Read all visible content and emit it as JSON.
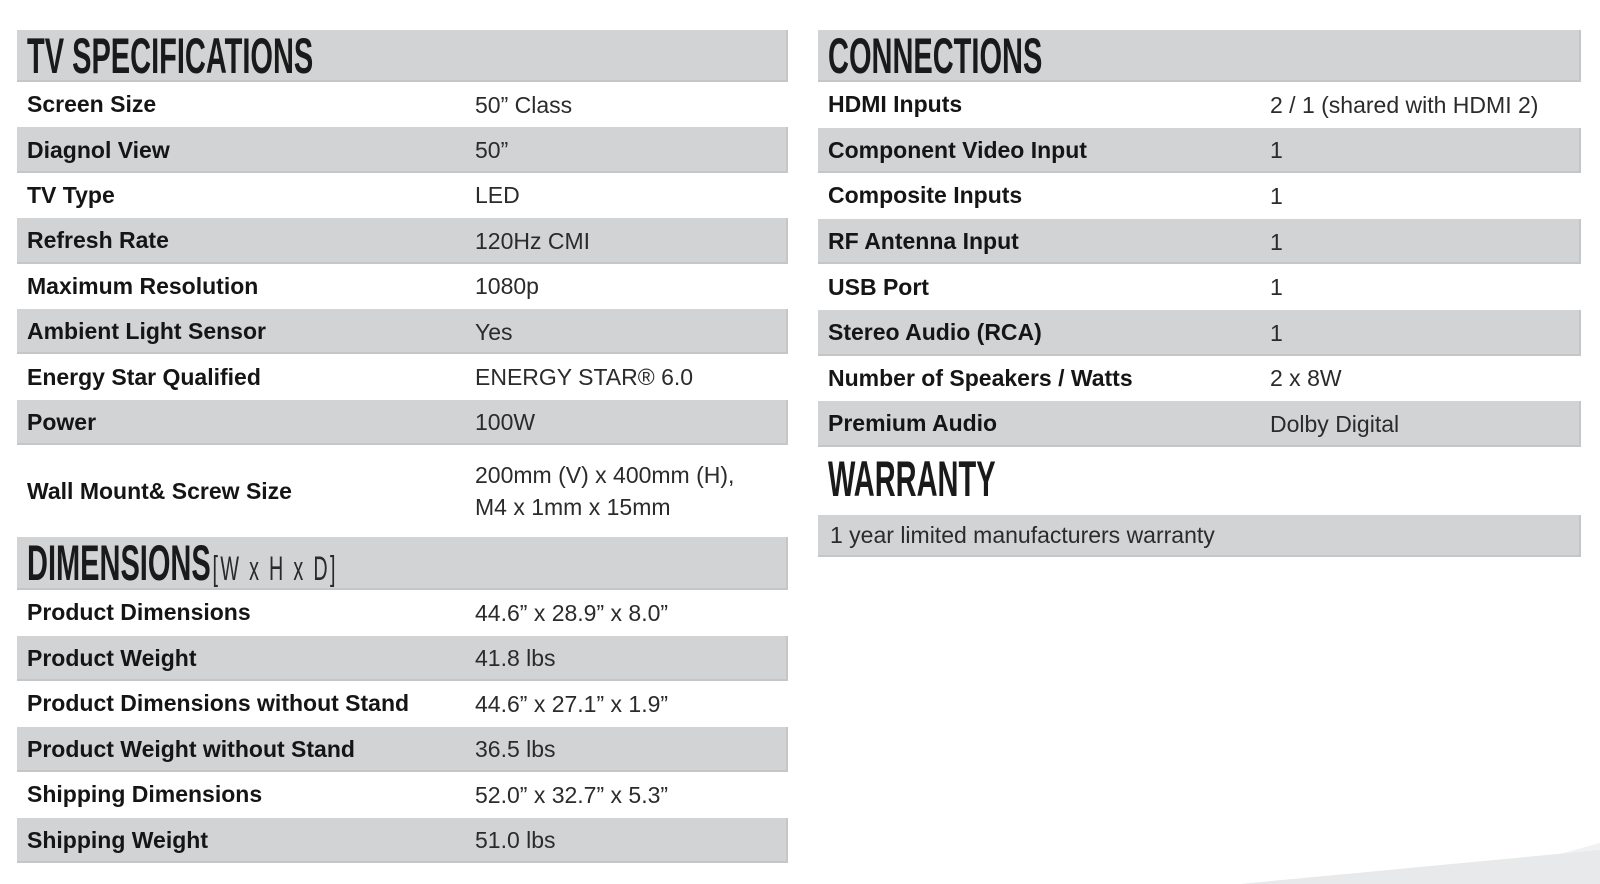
{
  "sections": {
    "tv_specifications": {
      "title": "TV SPECIFICATIONS",
      "rows": [
        {
          "label": "Screen Size",
          "value": "50” Class"
        },
        {
          "label": "Diagnol View",
          "value": "50”"
        },
        {
          "label": "TV Type",
          "value": "LED"
        },
        {
          "label": "Refresh Rate",
          "value": "120Hz CMI"
        },
        {
          "label": "Maximum Resolution",
          "value": "1080p"
        },
        {
          "label": "Ambient Light Sensor",
          "value": "Yes"
        },
        {
          "label": "Energy Star Qualified",
          "value": "ENERGY STAR® 6.0"
        },
        {
          "label": "Power",
          "value": "100W"
        },
        {
          "label": "Wall Mount& Screw Size",
          "value": "200mm (V) x 400mm (H),\nM4 x 1mm x 15mm"
        }
      ]
    },
    "dimensions": {
      "title": "DIMENSIONS",
      "subtitle": "[W x H x D]",
      "rows": [
        {
          "label": "Product Dimensions",
          "value": "44.6” x 28.9” x 8.0”"
        },
        {
          "label": "Product Weight",
          "value": "41.8 lbs"
        },
        {
          "label": "Product Dimensions without Stand",
          "value": "44.6” x 27.1” x 1.9”"
        },
        {
          "label": "Product Weight without Stand",
          "value": "36.5 lbs"
        },
        {
          "label": "Shipping Dimensions",
          "value": "52.0” x 32.7” x 5.3”"
        },
        {
          "label": "Shipping Weight",
          "value": "51.0 lbs"
        }
      ]
    },
    "connections": {
      "title": "CONNECTIONS",
      "rows": [
        {
          "label": "HDMI Inputs",
          "value": "2 / 1 (shared with HDMI 2)"
        },
        {
          "label": "Component Video Input",
          "value": "1"
        },
        {
          "label": "Composite Inputs",
          "value": "1"
        },
        {
          "label": "RF Antenna Input",
          "value": "1"
        },
        {
          "label": "USB Port",
          "value": "1"
        },
        {
          "label": "Stereo Audio (RCA)",
          "value": "1"
        },
        {
          "label": "Number of Speakers / Watts",
          "value": "2 x 8W"
        },
        {
          "label": "Premium Audio",
          "value": "Dolby Digital"
        }
      ]
    },
    "warranty": {
      "title": "WARRANTY",
      "text": "1 year limited manufacturers warranty"
    }
  },
  "colors": {
    "band_gray": "#d1d3d4",
    "text_black": "#1a1a1a",
    "wedge_gray": "#e7e9ea"
  }
}
